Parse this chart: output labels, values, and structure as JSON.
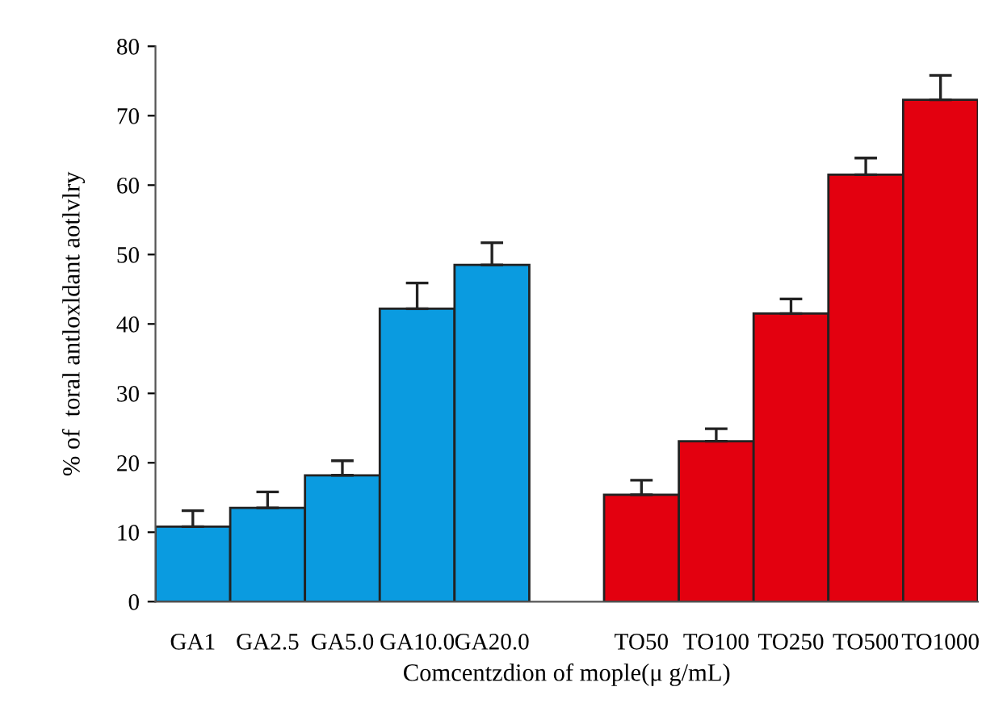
{
  "chart_data": {
    "type": "bar",
    "xlabel": "Comcentzdion of mople(μ g/mL)",
    "ylabel": "% of  toral antloxldant aotlvlry",
    "categories": [
      "GA1",
      "GA2.5",
      "GA5.0",
      "GA10.0",
      "GA20.0",
      null,
      "TO50",
      "TO100",
      "TO250",
      "TO500",
      "TO1000"
    ],
    "values": [
      10.8,
      13.5,
      18.2,
      42.2,
      48.5,
      null,
      15.4,
      23.1,
      41.5,
      61.5,
      72.3
    ],
    "colors": [
      "#0a9be0",
      "#0a9be0",
      "#0a9be0",
      "#0a9be0",
      "#0a9be0",
      null,
      "#e3000f",
      "#e3000f",
      "#e3000f",
      "#e3000f",
      "#e3000f"
    ],
    "errors": [
      [
        10.8,
        13.1
      ],
      [
        13.5,
        15.8
      ],
      [
        18.2,
        20.3
      ],
      [
        42.2,
        45.9
      ],
      [
        48.5,
        51.7
      ],
      null,
      [
        15.4,
        17.5
      ],
      [
        23.1,
        24.9
      ],
      [
        41.5,
        43.6
      ],
      [
        61.5,
        63.9
      ],
      [
        72.3,
        75.8
      ]
    ],
    "ylim": [
      0,
      80
    ],
    "yticks": [
      0,
      10,
      20,
      30,
      40,
      50,
      60,
      70,
      80
    ],
    "grid": false,
    "legend": false
  }
}
